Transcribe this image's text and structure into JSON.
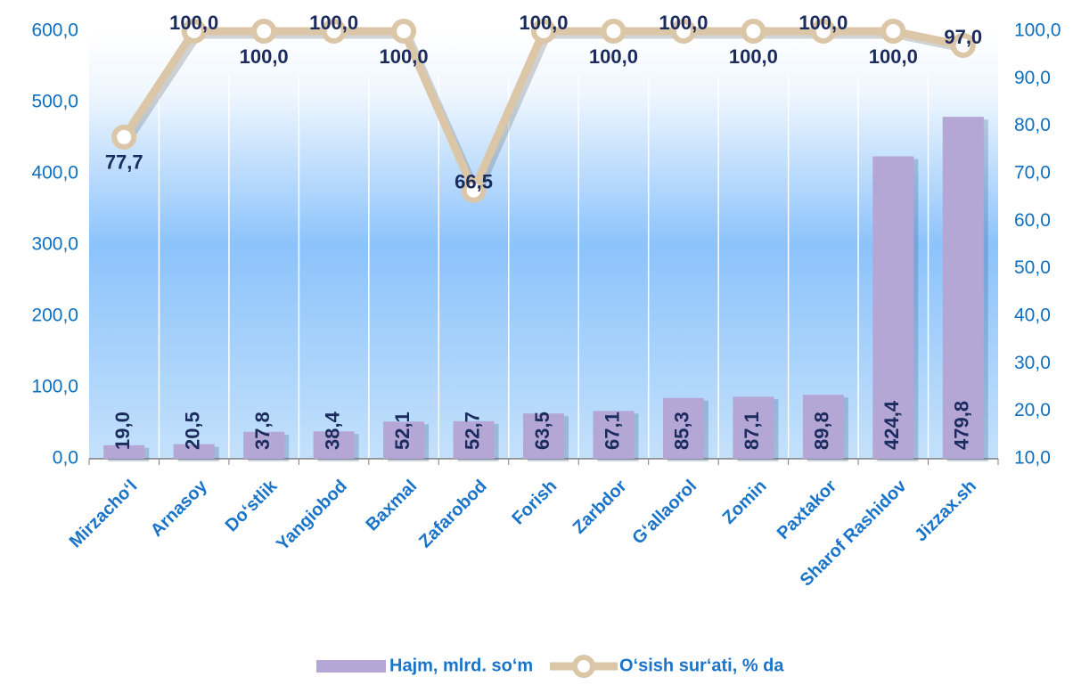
{
  "chart_data": {
    "type": "bar",
    "categories": [
      "Mirzacho‘l",
      "Arnasoy",
      "Do‘stlik",
      "Yangiobod",
      "Baxmal",
      "Zafarobod",
      "Forish",
      "Zarbdor",
      "G‘allaorol",
      "Zomin",
      "Paxtakor",
      "Sharof Rashidov",
      "Jizzax.sh"
    ],
    "series": [
      {
        "name": "Hajm, mlrd. so‘m",
        "type": "bar",
        "color": "#b4a7d6",
        "values": [
          19.0,
          20.5,
          37.8,
          38.4,
          52.1,
          52.7,
          63.5,
          67.1,
          85.3,
          87.1,
          89.8,
          424.4,
          479.8
        ],
        "value_labels": [
          "19,0",
          "20,5",
          "37,8",
          "38,4",
          "52,1",
          "52,7",
          "63,5",
          "67,1",
          "85,3",
          "87,1",
          "89,8",
          "424,4",
          "479,8"
        ]
      },
      {
        "name": "O‘sish sur‘ati, % da",
        "type": "line",
        "axis": "y2",
        "color": "#dcc6a8",
        "values": [
          77.7,
          100,
          100,
          100,
          100,
          66.5,
          100,
          100,
          100,
          100,
          100,
          100,
          97.0
        ],
        "value_labels": [
          "77,7",
          "100,0",
          "100,0",
          "100,0",
          "100,0",
          "66,5",
          "100,0",
          "100,0",
          "100,0",
          "100,0",
          "100,0",
          "100,0",
          "97,0"
        ]
      }
    ],
    "ylim": [
      0,
      600
    ],
    "yticks": [
      {
        "value": 0,
        "label": "0,0"
      },
      {
        "value": 100,
        "label": "100,0"
      },
      {
        "value": 200,
        "label": "200,0"
      },
      {
        "value": 300,
        "label": "300,0"
      },
      {
        "value": 400,
        "label": "400,0"
      },
      {
        "value": 500,
        "label": "500,0"
      },
      {
        "value": 600,
        "label": "600,0"
      }
    ],
    "y2lim": [
      10,
      100
    ],
    "y2ticks": [
      {
        "value": 10,
        "label": "10,0"
      },
      {
        "value": 20,
        "label": "20,0"
      },
      {
        "value": 30,
        "label": "30,0"
      },
      {
        "value": 40,
        "label": "40,0"
      },
      {
        "value": 50,
        "label": "50,0"
      },
      {
        "value": 60,
        "label": "60,0"
      },
      {
        "value": 70,
        "label": "70,0"
      },
      {
        "value": 80,
        "label": "80,0"
      },
      {
        "value": 90,
        "label": "90,0"
      },
      {
        "value": 100,
        "label": "100,0"
      }
    ],
    "legend": "bottom"
  }
}
